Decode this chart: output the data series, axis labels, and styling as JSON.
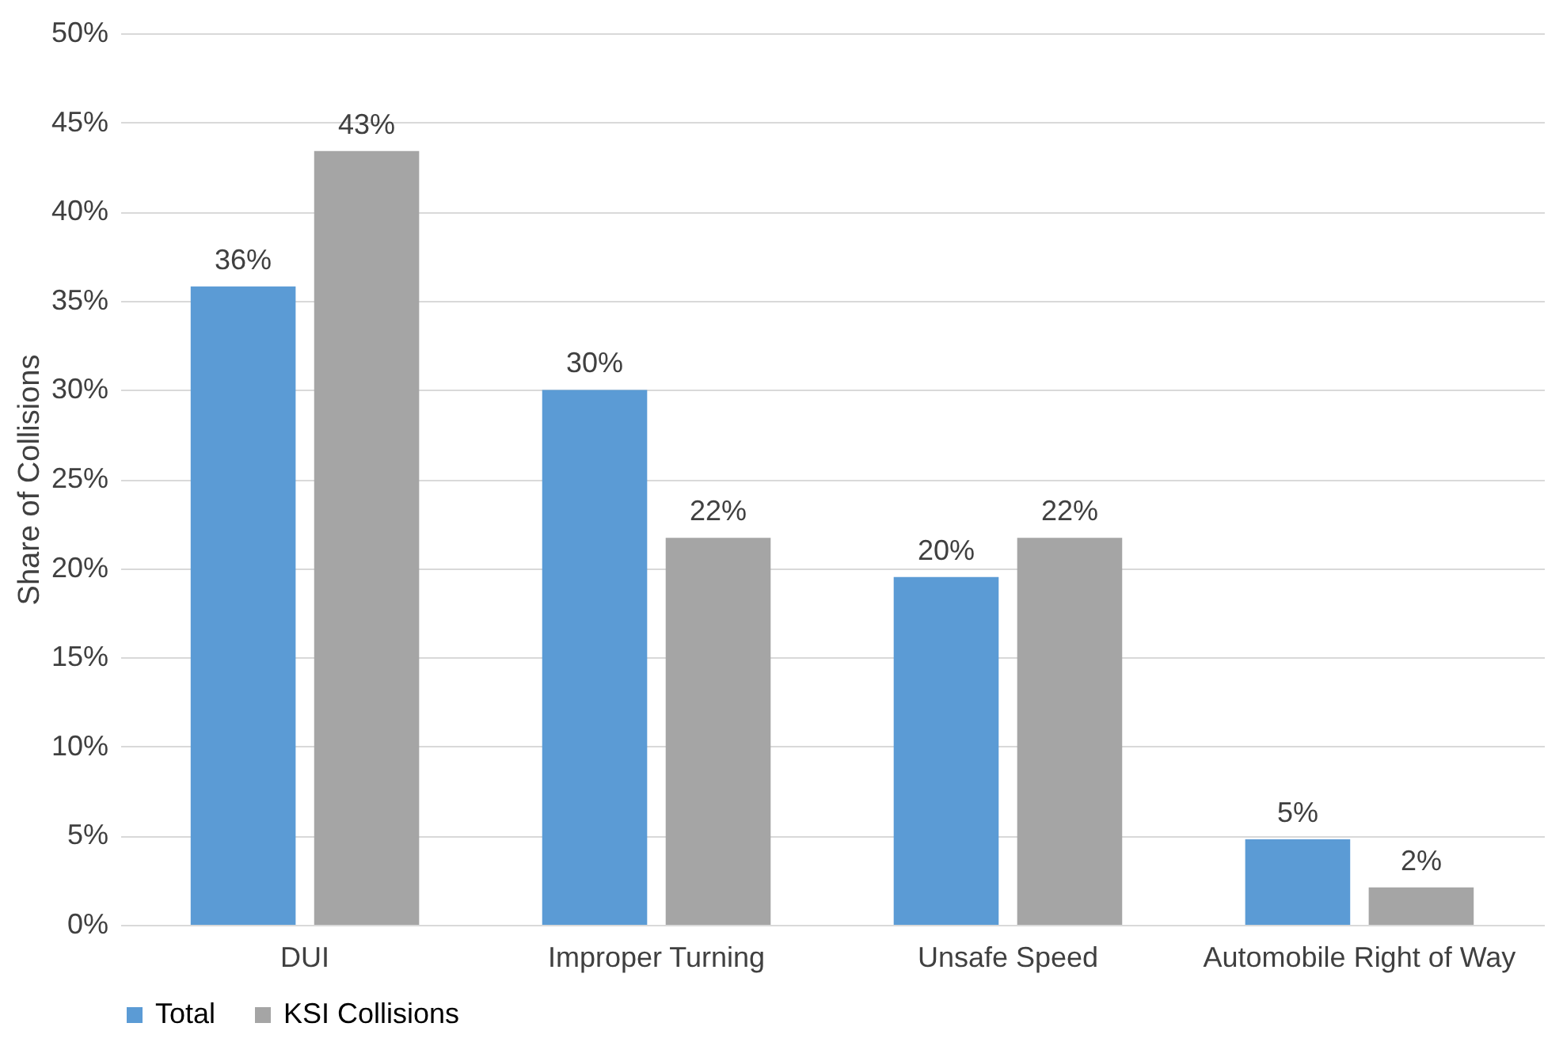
{
  "chart_data": {
    "type": "bar",
    "ylabel": "Share of Collisions",
    "categories": [
      "DUI",
      "Improper Turning",
      "Unsafe Speed",
      "Automobile Right of Way"
    ],
    "series": [
      {
        "name": "Total",
        "color": "#5b9bd5",
        "values": [
          35.8,
          30.0,
          19.5,
          4.8
        ],
        "value_labels": [
          "36%",
          "30%",
          "20%",
          "5%"
        ]
      },
      {
        "name": "KSI Collisions",
        "color": "#a5a5a5",
        "values": [
          43.4,
          21.7,
          21.7,
          2.1
        ],
        "value_labels": [
          "43%",
          "22%",
          "22%",
          "2%"
        ]
      }
    ],
    "ylim": [
      0,
      50
    ],
    "yticks": [
      {
        "value": 0,
        "label": "0%"
      },
      {
        "value": 5,
        "label": "5%"
      },
      {
        "value": 10,
        "label": "10%"
      },
      {
        "value": 15,
        "label": "15%"
      },
      {
        "value": 20,
        "label": "20%"
      },
      {
        "value": 25,
        "label": "25%"
      },
      {
        "value": 30,
        "label": "30%"
      },
      {
        "value": 35,
        "label": "35%"
      },
      {
        "value": 40,
        "label": "40%"
      },
      {
        "value": 45,
        "label": "45%"
      },
      {
        "value": 50,
        "label": "50%"
      }
    ],
    "grid": "y",
    "legend": "bottom"
  }
}
